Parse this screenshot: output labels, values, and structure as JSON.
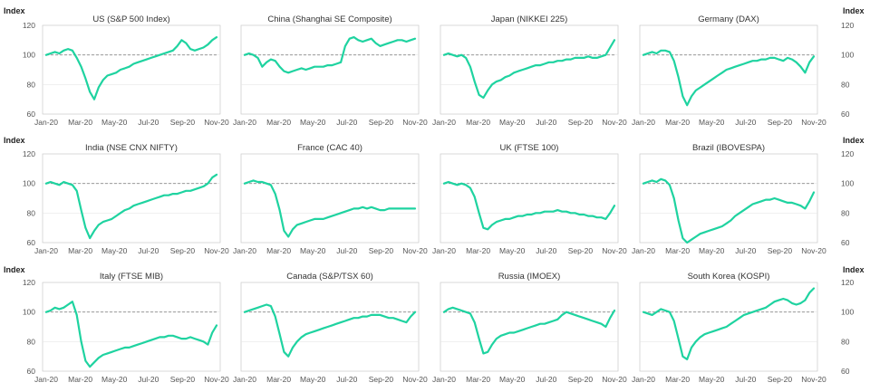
{
  "chart_data": {
    "type": "line",
    "y_label": "Index",
    "yticks_top": [
      60,
      80,
      100,
      120
    ],
    "yticks_bottom": [
      60,
      80,
      100,
      120
    ],
    "x_ticks": [
      "Jan-20",
      "Mar-20",
      "May-20",
      "Jul-20",
      "Sep-20",
      "Nov-20"
    ],
    "baseline": 100,
    "line_color": "#1fd3a0",
    "panels": [
      {
        "title": "US (S&P 500 Index)",
        "ylim": [
          60,
          120
        ],
        "values": [
          100,
          101,
          102,
          101,
          103,
          104,
          103,
          98,
          92,
          84,
          75,
          70,
          78,
          83,
          86,
          87,
          88,
          90,
          91,
          92,
          94,
          95,
          96,
          97,
          98,
          99,
          100,
          101,
          102,
          103,
          106,
          110,
          108,
          104,
          103,
          104,
          105,
          107,
          110,
          112
        ]
      },
      {
        "title": "China (Shanghai SE Composite)",
        "ylim": [
          60,
          120
        ],
        "values": [
          100,
          101,
          100,
          98,
          92,
          95,
          97,
          96,
          92,
          89,
          88,
          89,
          90,
          91,
          90,
          91,
          92,
          92,
          92,
          93,
          93,
          94,
          95,
          106,
          111,
          112,
          110,
          109,
          110,
          111,
          108,
          106,
          107,
          108,
          109,
          110,
          110,
          109,
          110,
          111
        ]
      },
      {
        "title": "Japan (NIKKEI 225)",
        "ylim": [
          60,
          120
        ],
        "values": [
          100,
          101,
          100,
          99,
          100,
          98,
          92,
          82,
          73,
          71,
          76,
          80,
          82,
          83,
          85,
          86,
          88,
          89,
          90,
          91,
          92,
          93,
          93,
          94,
          95,
          95,
          96,
          96,
          97,
          97,
          98,
          98,
          98,
          99,
          98,
          98,
          99,
          100,
          105,
          110
        ]
      },
      {
        "title": "Germany (DAX)",
        "ylim": [
          60,
          120
        ],
        "values": [
          100,
          101,
          102,
          101,
          103,
          103,
          102,
          96,
          85,
          72,
          66,
          72,
          76,
          78,
          80,
          82,
          84,
          86,
          88,
          90,
          91,
          92,
          93,
          94,
          95,
          96,
          96,
          97,
          97,
          98,
          98,
          97,
          96,
          98,
          97,
          95,
          92,
          88,
          95,
          99
        ]
      },
      {
        "title": "India (NSE CNX NIFTY)",
        "ylim": [
          60,
          120
        ],
        "values": [
          100,
          101,
          100,
          99,
          101,
          100,
          99,
          95,
          82,
          70,
          63,
          68,
          72,
          74,
          75,
          76,
          78,
          80,
          82,
          83,
          85,
          86,
          87,
          88,
          89,
          90,
          91,
          92,
          92,
          93,
          93,
          94,
          95,
          95,
          96,
          97,
          98,
          100,
          104,
          106
        ]
      },
      {
        "title": "France (CAC 40)",
        "ylim": [
          60,
          120
        ],
        "values": [
          100,
          101,
          102,
          101,
          101,
          100,
          99,
          93,
          82,
          68,
          64,
          69,
          72,
          73,
          74,
          75,
          76,
          76,
          76,
          77,
          78,
          79,
          80,
          81,
          82,
          83,
          83,
          84,
          83,
          84,
          83,
          82,
          82,
          83,
          83,
          83,
          83,
          83,
          83,
          83
        ]
      },
      {
        "title": "UK (FTSE 100)",
        "ylim": [
          60,
          120
        ],
        "values": [
          100,
          101,
          100,
          99,
          100,
          99,
          97,
          91,
          80,
          70,
          69,
          72,
          74,
          75,
          76,
          76,
          77,
          78,
          78,
          79,
          79,
          80,
          80,
          81,
          81,
          81,
          82,
          81,
          81,
          80,
          80,
          79,
          79,
          78,
          78,
          77,
          77,
          76,
          80,
          85
        ]
      },
      {
        "title": "Brazil (IBOVESPA)",
        "ylim": [
          60,
          120
        ],
        "values": [
          100,
          101,
          102,
          101,
          103,
          102,
          99,
          90,
          75,
          63,
          60,
          62,
          64,
          66,
          67,
          68,
          69,
          70,
          71,
          73,
          75,
          78,
          80,
          82,
          84,
          86,
          87,
          88,
          89,
          89,
          90,
          89,
          88,
          87,
          87,
          86,
          85,
          83,
          88,
          94
        ]
      },
      {
        "title": "Italy (FTSE MIB)",
        "ylim": [
          60,
          120
        ],
        "values": [
          100,
          101,
          103,
          102,
          103,
          105,
          107,
          98,
          80,
          67,
          63,
          66,
          69,
          71,
          72,
          73,
          74,
          75,
          76,
          76,
          77,
          78,
          79,
          80,
          81,
          82,
          83,
          83,
          84,
          84,
          83,
          82,
          82,
          83,
          82,
          81,
          80,
          78,
          86,
          91
        ]
      },
      {
        "title": "Canada (S&P/TSX 60)",
        "ylim": [
          60,
          120
        ],
        "values": [
          100,
          101,
          102,
          103,
          104,
          105,
          104,
          97,
          85,
          73,
          70,
          76,
          80,
          83,
          85,
          86,
          87,
          88,
          89,
          90,
          91,
          92,
          93,
          94,
          95,
          96,
          96,
          97,
          97,
          98,
          98,
          98,
          97,
          96,
          96,
          95,
          94,
          93,
          97,
          100
        ]
      },
      {
        "title": "Russia (IMOEX)",
        "ylim": [
          60,
          120
        ],
        "values": [
          100,
          102,
          103,
          102,
          101,
          100,
          99,
          93,
          82,
          72,
          73,
          78,
          82,
          84,
          85,
          86,
          86,
          87,
          88,
          89,
          90,
          91,
          92,
          92,
          93,
          94,
          95,
          98,
          100,
          99,
          98,
          97,
          96,
          95,
          94,
          93,
          92,
          90,
          96,
          101
        ]
      },
      {
        "title": "South Korea (KOSPI)",
        "ylim": [
          60,
          120
        ],
        "values": [
          100,
          99,
          98,
          100,
          102,
          101,
          100,
          94,
          82,
          70,
          68,
          76,
          80,
          83,
          85,
          86,
          87,
          88,
          89,
          90,
          92,
          94,
          96,
          98,
          99,
          100,
          101,
          102,
          103,
          105,
          107,
          108,
          109,
          108,
          106,
          105,
          106,
          108,
          113,
          116
        ]
      }
    ]
  }
}
